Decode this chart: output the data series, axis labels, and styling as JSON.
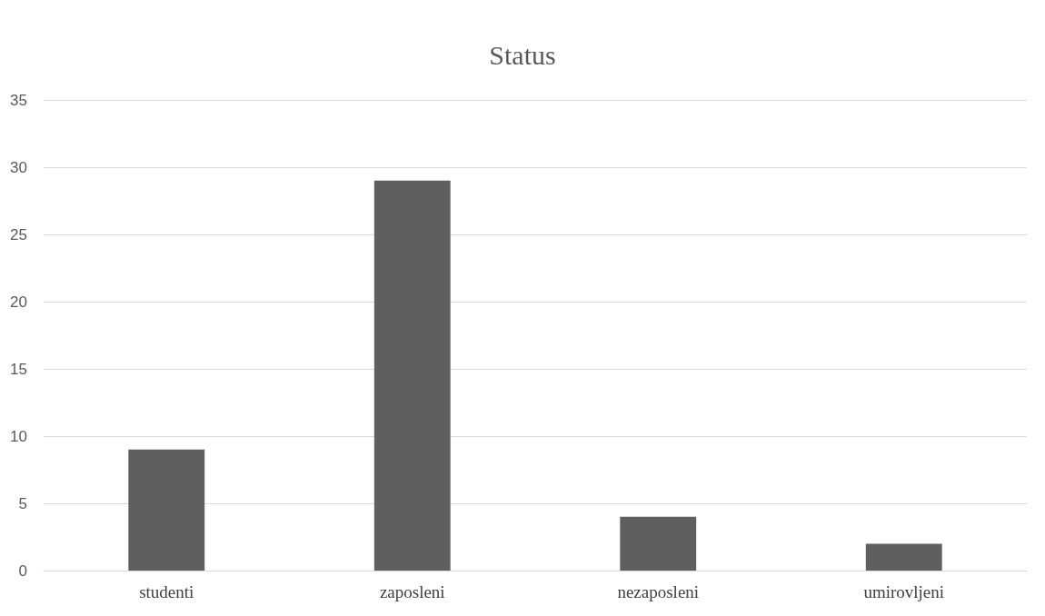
{
  "chart_data": {
    "type": "bar",
    "title": "Status",
    "categories": [
      "studenti",
      "zaposleni",
      "nezaposleni",
      "umirovljeni"
    ],
    "values": [
      9,
      29,
      4,
      2
    ],
    "color": "#5f5f5f",
    "ylim": [
      0,
      35
    ],
    "yticks": [
      0,
      5,
      10,
      15,
      20,
      25,
      30,
      35
    ],
    "grid": "y"
  }
}
